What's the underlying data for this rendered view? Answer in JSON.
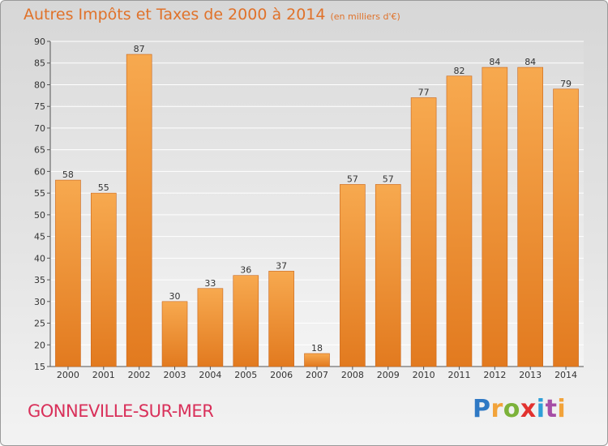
{
  "chart_data": {
    "type": "bar",
    "title": "Autres Impôts et Taxes de 2000 à 2014",
    "subtitle": "(en milliers d'€)",
    "categories": [
      "2000",
      "2001",
      "2002",
      "2003",
      "2004",
      "2005",
      "2006",
      "2007",
      "2008",
      "2009",
      "2010",
      "2011",
      "2012",
      "2013",
      "2014"
    ],
    "values": [
      58,
      55,
      87,
      30,
      33,
      36,
      37,
      18,
      57,
      57,
      77,
      82,
      84,
      84,
      79
    ],
    "ylim": [
      15,
      90
    ],
    "yticks": [
      15,
      20,
      25,
      30,
      35,
      40,
      45,
      50,
      55,
      60,
      65,
      70,
      75,
      80,
      85,
      90
    ],
    "grid": true,
    "bar_color": "#f0a050"
  },
  "commune": "GONNEVILLE-SUR-MER",
  "logo": {
    "letters": [
      "P",
      "r",
      "o",
      "x",
      "i",
      "t",
      "i"
    ],
    "colors": [
      "#2f79c4",
      "#f2a33a",
      "#7cb23a",
      "#e2322f",
      "#2f9fd8",
      "#a64ea6",
      "#f2a33a"
    ]
  }
}
